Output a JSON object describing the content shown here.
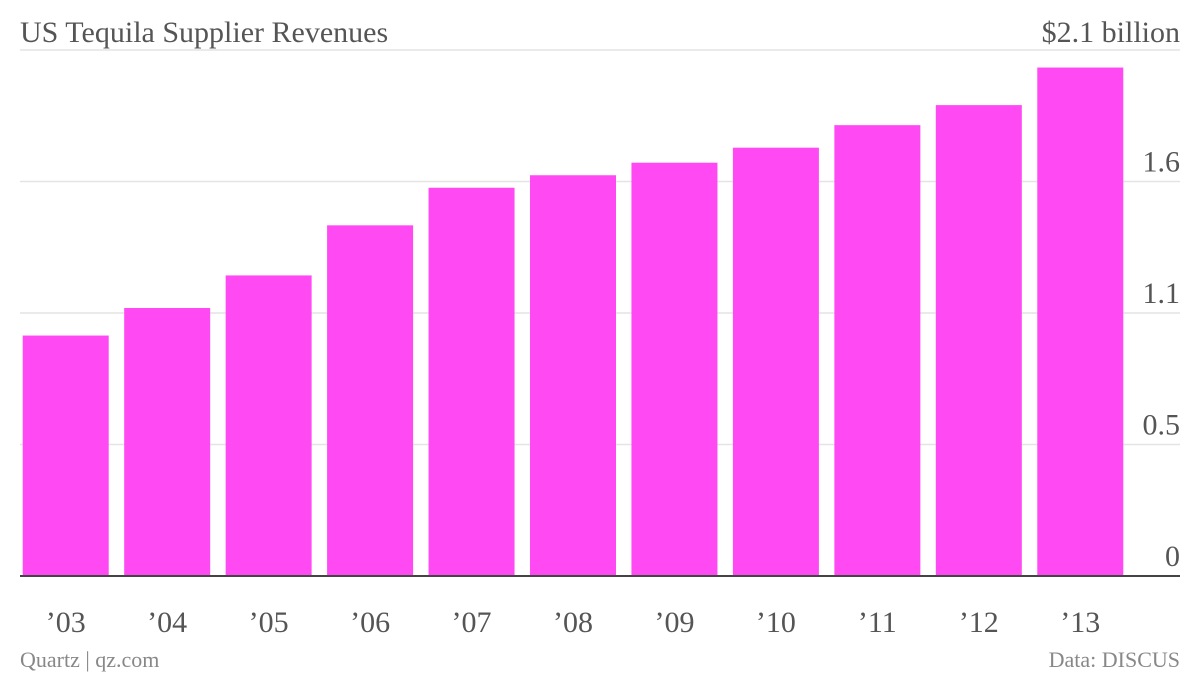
{
  "chart_data": {
    "type": "bar",
    "title": "US Tequila Supplier Revenues",
    "categories": [
      "’03",
      "’04",
      "’05",
      "’06",
      "’07",
      "’08",
      "’09",
      "’10",
      "’11",
      "’12",
      "’13"
    ],
    "values": [
      0.96,
      1.07,
      1.2,
      1.4,
      1.55,
      1.6,
      1.65,
      1.71,
      1.8,
      1.88,
      2.03
    ],
    "color": "#ff4af4",
    "ylim": [
      0,
      2.1
    ],
    "yticks": [
      0,
      {
        "value": 0.525,
        "label": "0.5"
      },
      {
        "value": 1.05,
        "label": "1.1"
      },
      {
        "value": 1.575,
        "label": "1.6"
      },
      {
        "value": 2.1,
        "label": "$2.1 billion"
      }
    ],
    "grid": true,
    "source": "Data: DISCUS",
    "credit": "Quartz | qz.com"
  }
}
